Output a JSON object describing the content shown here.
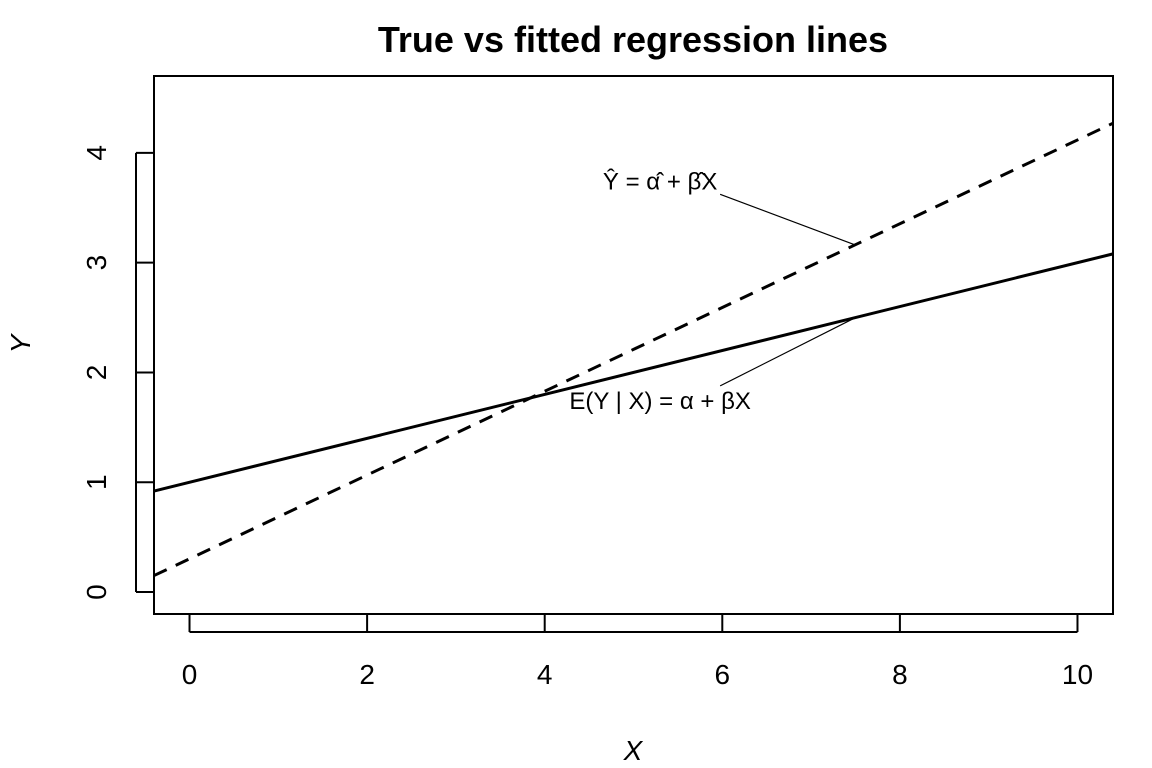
{
  "chart_data": {
    "type": "line",
    "title": "True vs fitted regression lines",
    "xlabel": "X",
    "ylabel": "Y",
    "xlim": [
      -0.4,
      10.4
    ],
    "ylim": [
      -0.2,
      4.7
    ],
    "x_ticks": [
      0,
      2,
      4,
      6,
      8,
      10
    ],
    "y_ticks": [
      0,
      1,
      2,
      3,
      4
    ],
    "grid": false,
    "series": [
      {
        "name": "",
        "style": "solid",
        "color": "#000000",
        "x": [
          -0.4,
          10.4
        ],
        "y": [
          0.92,
          3.08
        ]
      },
      {
        "name": "",
        "style": "dashed",
        "color": "#000000",
        "x": [
          -0.4,
          10.4
        ],
        "y": [
          0.15,
          4.27
        ]
      }
    ],
    "annotations": [
      {
        "text": "Ŷ = α̂ + β̂X",
        "text_x": 5.3,
        "text_y": 3.75,
        "point_x": 7.5,
        "point_y": 3.16
      },
      {
        "text": "E(Y | X) = α + βX",
        "text_x": 5.3,
        "text_y": 1.75,
        "point_x": 7.5,
        "point_y": 2.5
      }
    ]
  }
}
